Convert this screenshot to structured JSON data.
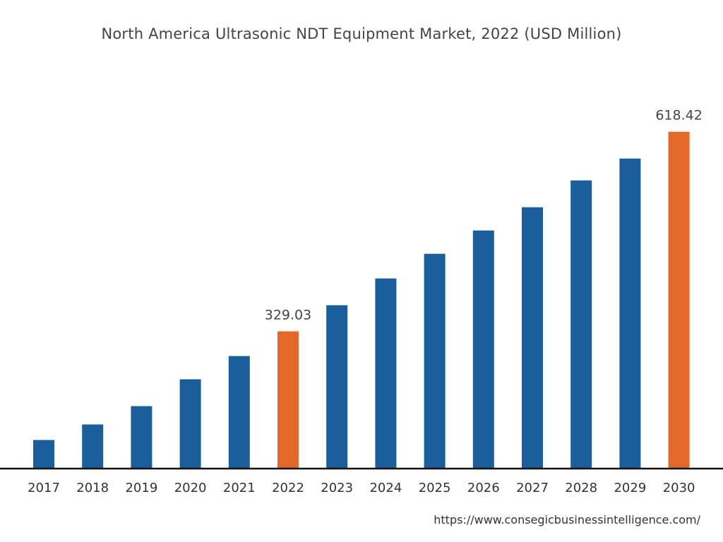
{
  "chart_data": {
    "type": "bar",
    "title": "North America Ultrasonic NDT Equipment Market, 2022 (USD Million)",
    "xlabel": "",
    "ylabel": "",
    "categories": [
      "2017",
      "2018",
      "2019",
      "2020",
      "2021",
      "2022",
      "2023",
      "2024",
      "2025",
      "2026",
      "2027",
      "2028",
      "2029",
      "2030"
    ],
    "values": [
      171.5,
      194.0,
      220.6,
      259.5,
      293.2,
      329.03,
      366.9,
      405.7,
      441.5,
      475.3,
      509.0,
      547.9,
      579.6,
      618.42
    ],
    "data_labels": {
      "2022": "329.03",
      "2030": "618.42"
    },
    "highlight_categories": [
      "2022",
      "2030"
    ],
    "colors": {
      "default": "#1a5f9c",
      "highlight": "#e2692a",
      "axis": "#111111"
    },
    "ylim": [
      130,
      700
    ],
    "grid": false,
    "legend": "none"
  },
  "footer": {
    "source": "https://www.consegicbusinessintelligence.com/"
  }
}
